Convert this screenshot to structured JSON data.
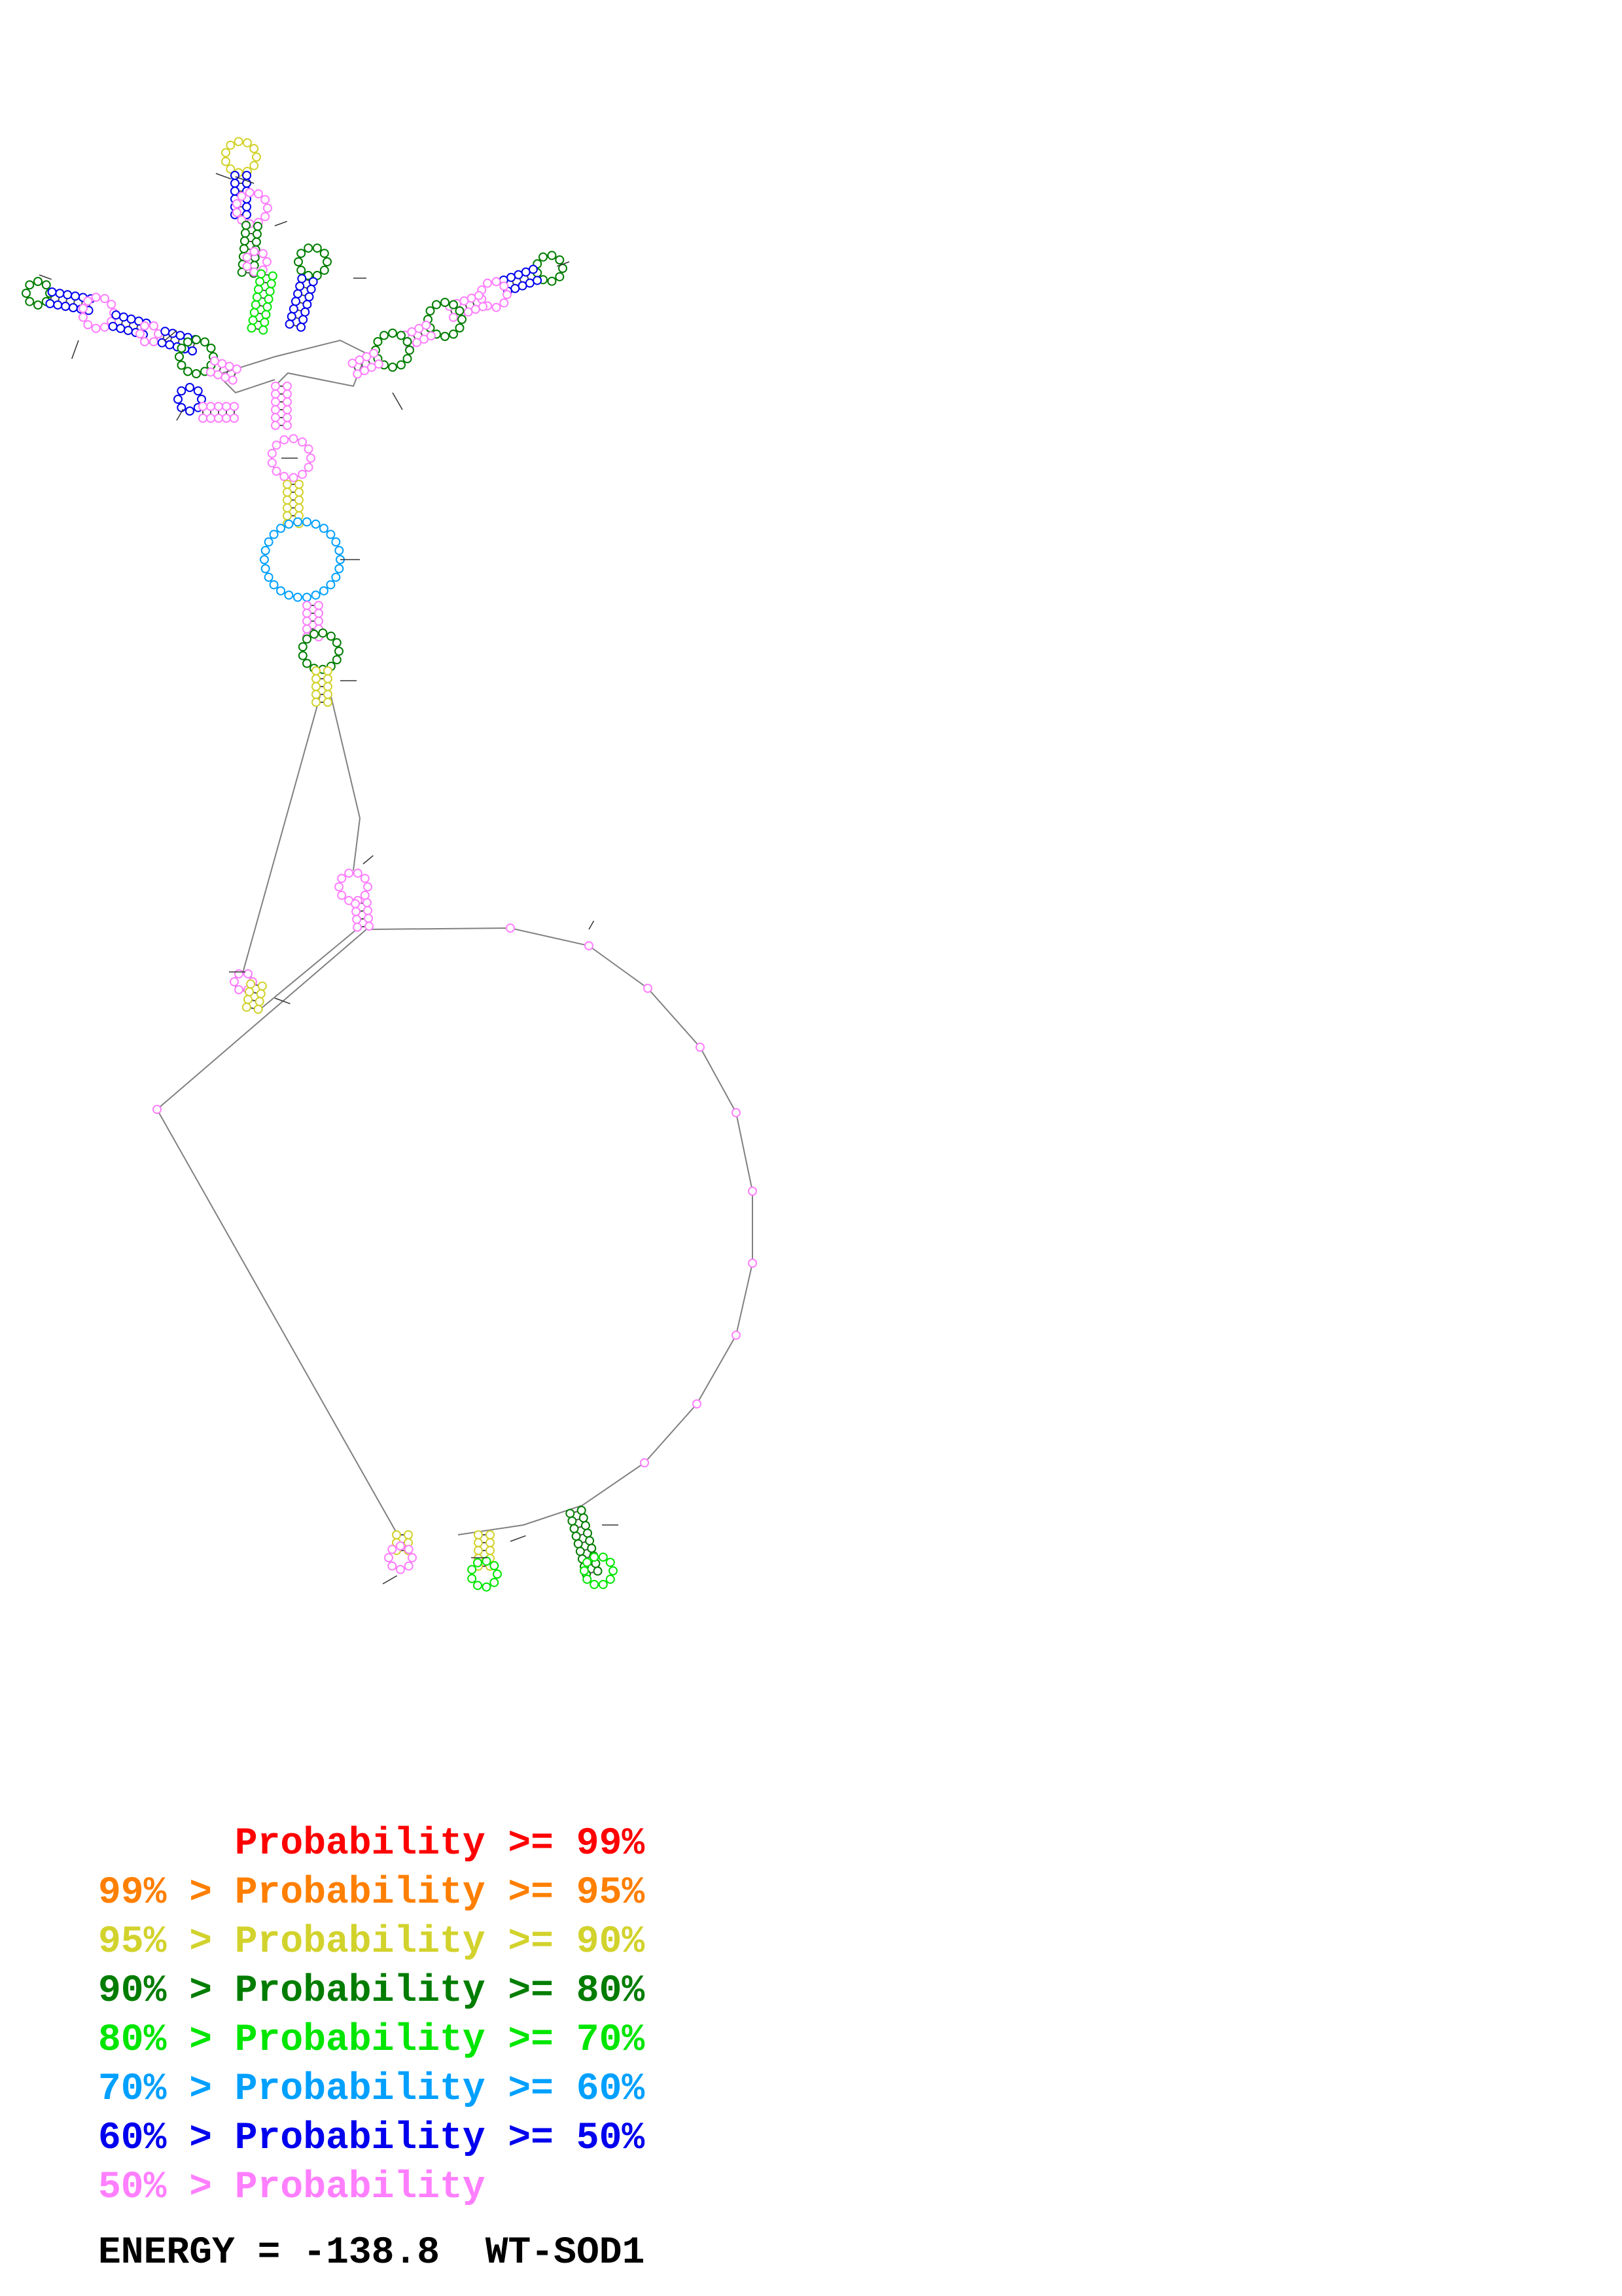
{
  "colors": {
    "p99": "#ff0000",
    "p95": "#ff7f00",
    "p90": "#d2d22d",
    "p80": "#007d00",
    "p70": "#00e600",
    "p60": "#00a0ff",
    "p50": "#0000ee",
    "plow": "#ff7fff",
    "backbone": "#808080",
    "pair": "#505050"
  },
  "legend": [
    {
      "lo": "",
      "cmp1": "",
      "word": "Probability",
      "cmp2": ">=",
      "hi": "99%",
      "color": "#ff0000"
    },
    {
      "lo": "99%",
      "cmp1": ">",
      "word": "Probability",
      "cmp2": ">=",
      "hi": "95%",
      "color": "#ff7f00"
    },
    {
      "lo": "95%",
      "cmp1": ">",
      "word": "Probability",
      "cmp2": ">=",
      "hi": "90%",
      "color": "#d2d22d"
    },
    {
      "lo": "90%",
      "cmp1": ">",
      "word": "Probability",
      "cmp2": ">=",
      "hi": "80%",
      "color": "#007d00"
    },
    {
      "lo": "80%",
      "cmp1": ">",
      "word": "Probability",
      "cmp2": ">=",
      "hi": "70%",
      "color": "#00e600"
    },
    {
      "lo": "70%",
      "cmp1": ">",
      "word": "Probability",
      "cmp2": ">=",
      "hi": "60%",
      "color": "#00a0ff"
    },
    {
      "lo": "60%",
      "cmp1": ">",
      "word": "Probability",
      "cmp2": ">=",
      "hi": "50%",
      "color": "#0000ee"
    },
    {
      "lo": "50%",
      "cmp1": ">",
      "word": "Probability",
      "cmp2": "",
      "hi": "",
      "color": "#ff7fff"
    }
  ],
  "energy": {
    "label": "ENERGY = ",
    "value": "-138.8",
    "name": "WT-SOD1"
  }
}
